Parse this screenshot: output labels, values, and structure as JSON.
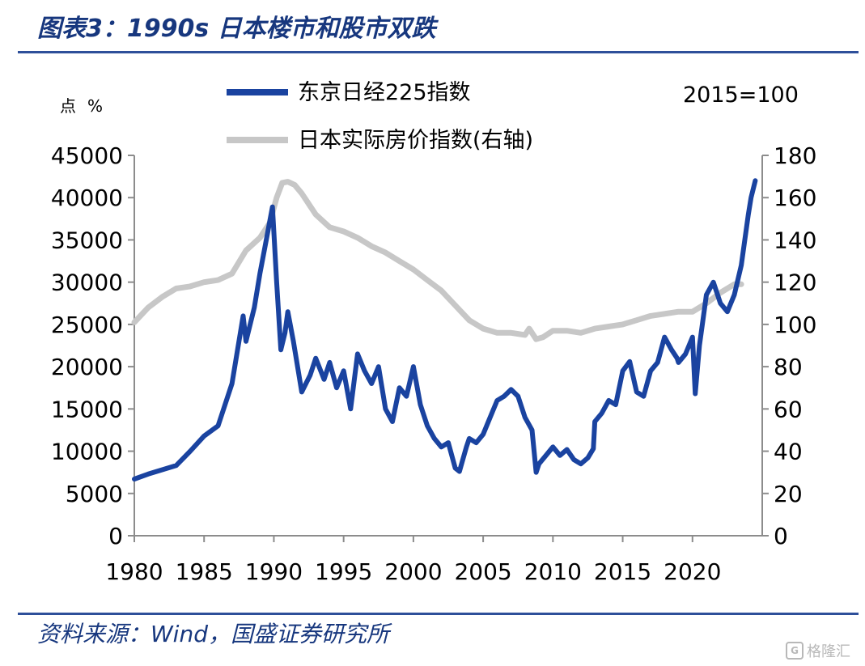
{
  "header": {
    "title": "图表3：1990s 日本楼市和股市双跌"
  },
  "footer": {
    "source": "资料来源：Wind，国盛证券研究所"
  },
  "watermark": {
    "text": "格隆汇",
    "logo": "G"
  },
  "colors": {
    "nikkei": "#1a43a0",
    "housing": "#c7c7c7",
    "accent": "#17377e"
  },
  "chart_data": {
    "type": "line",
    "left_unit": "点",
    "right_unit": "%",
    "base_note": "2015=100",
    "x_ticks": [
      "1980",
      "1985",
      "1990",
      "1995",
      "2000",
      "2005",
      "2010",
      "2015",
      "2020"
    ],
    "x_range": [
      1980,
      2025
    ],
    "y_left_ticks": [
      "0",
      "5000",
      "10000",
      "15000",
      "20000",
      "25000",
      "30000",
      "35000",
      "40000",
      "45000"
    ],
    "y_left_range": [
      0,
      45000
    ],
    "y_right_ticks": [
      "0",
      "20",
      "40",
      "60",
      "80",
      "100",
      "120",
      "140",
      "160",
      "180"
    ],
    "y_right_range": [
      0,
      180
    ],
    "series": [
      {
        "name": "东京日经225指数",
        "axis": "left",
        "x": [
          1980,
          1981,
          1982,
          1983,
          1984,
          1985,
          1986,
          1987,
          1987.8,
          1988,
          1988.6,
          1989,
          1989.4,
          1989.9,
          1990,
          1990.2,
          1990.5,
          1990.8,
          1991,
          1991.4,
          1992,
          1992.6,
          1993,
          1993.6,
          1994,
          1994.5,
          1995,
          1995.5,
          1996,
          1996.5,
          1997,
          1997.5,
          1998,
          1998.5,
          1999,
          1999.5,
          2000,
          2000.5,
          2001,
          2001.5,
          2002,
          2002.5,
          2003,
          2003.3,
          2003.8,
          2004,
          2004.5,
          2005,
          2005.5,
          2006,
          2006.5,
          2007,
          2007.5,
          2008,
          2008.5,
          2008.8,
          2009,
          2009.5,
          2010,
          2010.5,
          2011,
          2011.5,
          2012,
          2012.5,
          2012.9,
          2013,
          2013.5,
          2014,
          2014.5,
          2015,
          2015.5,
          2016,
          2016.5,
          2017,
          2017.5,
          2018,
          2018.5,
          2018.9,
          2019,
          2019.5,
          2020,
          2020.2,
          2020.5,
          2021,
          2021.5,
          2022,
          2022.5,
          2023,
          2023.5,
          2024,
          2024.2,
          2024.5
        ],
        "y": [
          6700,
          7300,
          7800,
          8300,
          10000,
          11800,
          13000,
          18000,
          26000,
          23000,
          27000,
          31000,
          34500,
          38900,
          36000,
          30000,
          22000,
          24000,
          26500,
          23000,
          17000,
          19000,
          21000,
          18500,
          20500,
          17500,
          19500,
          15000,
          21500,
          19500,
          18000,
          20000,
          15000,
          13500,
          17500,
          16500,
          20000,
          15500,
          13000,
          11500,
          10500,
          11000,
          8000,
          7600,
          10500,
          11500,
          11000,
          12000,
          14000,
          16000,
          16500,
          17300,
          16500,
          14000,
          12500,
          7500,
          8500,
          9500,
          10500,
          9500,
          10200,
          9000,
          8500,
          9200,
          10300,
          13500,
          14500,
          16000,
          15500,
          19500,
          20600,
          17000,
          16500,
          19500,
          20500,
          23500,
          22000,
          21000,
          20500,
          21500,
          23500,
          16800,
          22500,
          28500,
          30000,
          27500,
          26500,
          28500,
          32000,
          38000,
          40000,
          42000
        ]
      },
      {
        "name": "日本实际房价指数(右轴)",
        "axis": "right",
        "x": [
          1980,
          1981,
          1982,
          1983,
          1984,
          1985,
          1986,
          1987,
          1988,
          1989,
          1989.7,
          1990.2,
          1990.6,
          1991,
          1991.5,
          1992,
          1993,
          1994,
          1995,
          1996,
          1997,
          1998,
          1999,
          2000,
          2001,
          2002,
          2003,
          2004,
          2005,
          2006,
          2007,
          2008,
          2008.3,
          2008.8,
          2009.3,
          2010,
          2011,
          2012,
          2013,
          2014,
          2015,
          2016,
          2017,
          2018,
          2019,
          2020,
          2021,
          2022,
          2023,
          2023.5
        ],
        "y": [
          101,
          108,
          113,
          117,
          118,
          120,
          121,
          124,
          135,
          141,
          148,
          160,
          167,
          167.5,
          166,
          162,
          152,
          146,
          144,
          141,
          137,
          134,
          130,
          126,
          121,
          116,
          109,
          102,
          98,
          96,
          96,
          95,
          98,
          93,
          94,
          97,
          97,
          96,
          98,
          99,
          100,
          102,
          104,
          105,
          106,
          106,
          110,
          115,
          119,
          119
        ]
      }
    ]
  }
}
